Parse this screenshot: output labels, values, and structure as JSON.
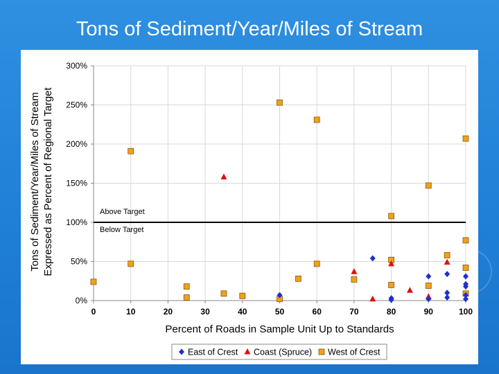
{
  "title": "Tons of Sediment/Year/Miles of Stream",
  "colors": {
    "background": "#1f7fd6",
    "east": "#1f2fd0",
    "coast": "#e01010",
    "west": "#f0a020",
    "west_edge": "#8a5a00",
    "target_line": "#000000",
    "grid": "#d8d8d8"
  },
  "chart_data": {
    "type": "scatter",
    "xlabel": "Percent of Roads in Sample Unit Up to Standards",
    "ylabel": [
      "Tons of Sediment/Year/Miles of Stream",
      "Expressed as Percent of Regional Target"
    ],
    "xlim": [
      0,
      100
    ],
    "ylim": [
      0,
      300
    ],
    "x_ticks": [
      "0",
      "10",
      "20",
      "30",
      "40",
      "50",
      "60",
      "70",
      "80",
      "90",
      "100"
    ],
    "y_ticks": [
      "0%",
      "50%",
      "100%",
      "150%",
      "200%",
      "250%",
      "300%"
    ],
    "grid": true,
    "legend_position": "bottom",
    "target_line": {
      "y": 100,
      "above_label": "Above Target",
      "below_label": "Below Target"
    },
    "series": [
      {
        "name": "East of Crest",
        "marker": "diamond",
        "points": [
          [
            50,
            7
          ],
          [
            75,
            54
          ],
          [
            80,
            3
          ],
          [
            80,
            1
          ],
          [
            90,
            31
          ],
          [
            90,
            2
          ],
          [
            95,
            34
          ],
          [
            95,
            10
          ],
          [
            95,
            4
          ],
          [
            100,
            31
          ],
          [
            100,
            21
          ],
          [
            100,
            18
          ],
          [
            100,
            7
          ],
          [
            100,
            2
          ]
        ]
      },
      {
        "name": "Coast (Spruce)",
        "marker": "triangle",
        "points": [
          [
            35,
            158
          ],
          [
            70,
            37
          ],
          [
            75,
            2
          ],
          [
            80,
            47
          ],
          [
            85,
            13
          ],
          [
            90,
            5
          ],
          [
            95,
            49
          ]
        ]
      },
      {
        "name": "West of Crest",
        "marker": "square",
        "points": [
          [
            0,
            24
          ],
          [
            10,
            191
          ],
          [
            10,
            47
          ],
          [
            25,
            18
          ],
          [
            25,
            4
          ],
          [
            35,
            9
          ],
          [
            40,
            6
          ],
          [
            50,
            253
          ],
          [
            50,
            2
          ],
          [
            55,
            28
          ],
          [
            60,
            231
          ],
          [
            60,
            47
          ],
          [
            70,
            27
          ],
          [
            80,
            108
          ],
          [
            80,
            52
          ],
          [
            80,
            20
          ],
          [
            90,
            147
          ],
          [
            90,
            19
          ],
          [
            95,
            58
          ],
          [
            100,
            207
          ],
          [
            100,
            77
          ],
          [
            100,
            42
          ],
          [
            100,
            9
          ]
        ]
      }
    ]
  }
}
